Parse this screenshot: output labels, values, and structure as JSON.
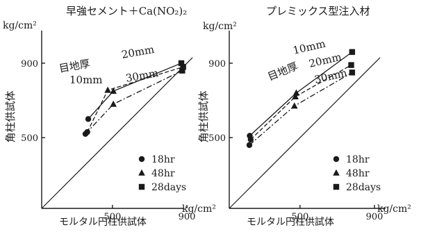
{
  "chart_data": [
    {
      "type": "scatter",
      "title": "早強セメント＋Ca(NO₂)₂",
      "ylabel": "角柱供試体",
      "xlabel": "モルタル円柱供試体",
      "yunit": "kg/cm²",
      "xunit": "kg/cm²",
      "x_ticks": [
        "500",
        "900"
      ],
      "y_ticks": [
        "500",
        "900"
      ],
      "xlim": [
        120,
        920
      ],
      "ylim": [
        120,
        920
      ],
      "reference_line": "y = x",
      "grid": false,
      "legend_position": "bottom-right",
      "annotation": "目地厚",
      "series": [
        {
          "name": "10mm",
          "line_style": "solid",
          "points": [
            {
              "x": 370,
              "y": 600,
              "marker": "18hr"
            },
            {
              "x": 505,
              "y": 750,
              "marker": "48hr"
            },
            {
              "x": 870,
              "y": 900,
              "marker": "28days"
            }
          ]
        },
        {
          "name": "20mm",
          "line_style": "dashed",
          "points": [
            {
              "x": 365,
              "y": 530,
              "marker": "18hr"
            },
            {
              "x": 475,
              "y": 755,
              "marker": "48hr"
            },
            {
              "x": 880,
              "y": 880,
              "marker": "28days"
            }
          ]
        },
        {
          "name": "30mm",
          "line_style": "dashdot",
          "points": [
            {
              "x": 355,
              "y": 520,
              "marker": "18hr"
            },
            {
              "x": 505,
              "y": 680,
              "marker": "48hr"
            },
            {
              "x": 875,
              "y": 860,
              "marker": "28days"
            }
          ]
        }
      ]
    },
    {
      "type": "scatter",
      "title": "プレミックス型注入材",
      "ylabel": "角柱供試体",
      "xlabel": "モルタル円柱供試体",
      "yunit": "kg/cm²",
      "xunit": "kg/cm²",
      "x_ticks": [
        "500",
        "900"
      ],
      "y_ticks": [
        "500",
        "900"
      ],
      "xlim": [
        120,
        920
      ],
      "ylim": [
        120,
        920
      ],
      "reference_line": "y = x",
      "grid": false,
      "legend_position": "bottom-right",
      "annotation": "目地厚",
      "series": [
        {
          "name": "10mm",
          "line_style": "solid",
          "points": [
            {
              "x": 230,
              "y": 510,
              "marker": "18hr"
            },
            {
              "x": 480,
              "y": 740,
              "marker": "48hr"
            },
            {
              "x": 780,
              "y": 960,
              "marker": "28days"
            }
          ]
        },
        {
          "name": "20mm",
          "line_style": "dashed",
          "points": [
            {
              "x": 235,
              "y": 490,
              "marker": "18hr"
            },
            {
              "x": 475,
              "y": 720,
              "marker": "48hr"
            },
            {
              "x": 775,
              "y": 890,
              "marker": "28days"
            }
          ]
        },
        {
          "name": "30mm",
          "line_style": "dashdot",
          "points": [
            {
              "x": 228,
              "y": 460,
              "marker": "18hr"
            },
            {
              "x": 470,
              "y": 670,
              "marker": "48hr"
            },
            {
              "x": 780,
              "y": 850,
              "marker": "28days"
            }
          ]
        }
      ]
    }
  ],
  "legend": [
    {
      "label": "18hr",
      "marker": "circle"
    },
    {
      "label": "48hr",
      "marker": "triangle"
    },
    {
      "label": "28days",
      "marker": "square"
    }
  ],
  "colors": {
    "ink": "#1a1a1a",
    "background": "#ffffff"
  }
}
